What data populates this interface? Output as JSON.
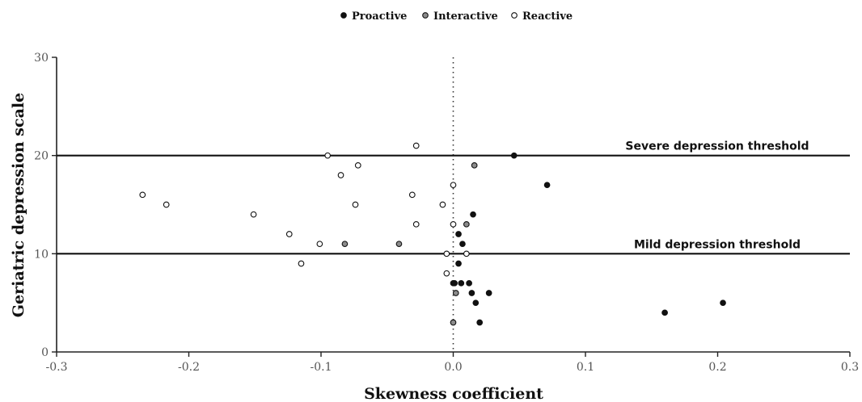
{
  "chart_data": {
    "type": "scatter",
    "xlabel": "Skewness coefficient",
    "ylabel": "Geriatric depression scale",
    "xlim": [
      -0.3,
      0.3
    ],
    "ylim": [
      0,
      30
    ],
    "xticks": [
      -0.3,
      -0.2,
      -0.1,
      0.0,
      0.1,
      0.2,
      0.3
    ],
    "xtick_labels": [
      "-0.3",
      "-0.2",
      "-0.1",
      "0.0",
      "0.1",
      "0.2",
      "0.3"
    ],
    "yticks": [
      0,
      10,
      20,
      30
    ],
    "ytick_labels": [
      "0",
      "10",
      "20",
      "30"
    ],
    "grid": false,
    "legend_position": "top-center",
    "vline": {
      "x": 0,
      "style": "dotted"
    },
    "hlines": [
      {
        "y": 20,
        "label": "Severe depression threshold"
      },
      {
        "y": 10,
        "label": "Mild depression threshold"
      }
    ],
    "series": [
      {
        "name": "Proactive",
        "color": "#111111",
        "points": [
          [
            0.046,
            20
          ],
          [
            0.071,
            17
          ],
          [
            0.015,
            14
          ],
          [
            0.004,
            12
          ],
          [
            0.007,
            11
          ],
          [
            0.004,
            9
          ],
          [
            0.0,
            7
          ],
          [
            0.001,
            7
          ],
          [
            0.006,
            7
          ],
          [
            0.012,
            7
          ],
          [
            0.014,
            6
          ],
          [
            0.027,
            6
          ],
          [
            0.017,
            5
          ],
          [
            0.02,
            3
          ],
          [
            0.16,
            4
          ],
          [
            0.204,
            5
          ]
        ]
      },
      {
        "name": "Interactive",
        "color": "#8c8c8c",
        "points": [
          [
            0.016,
            19
          ],
          [
            0.01,
            13
          ],
          [
            -0.082,
            11
          ],
          [
            -0.041,
            11
          ],
          [
            0.002,
            6
          ],
          [
            0.0,
            3
          ]
        ]
      },
      {
        "name": "Reactive",
        "color": "#ffffff",
        "points": [
          [
            -0.235,
            16
          ],
          [
            -0.217,
            15
          ],
          [
            -0.151,
            14
          ],
          [
            -0.124,
            12
          ],
          [
            -0.101,
            11
          ],
          [
            -0.115,
            9
          ],
          [
            -0.095,
            20
          ],
          [
            -0.085,
            18
          ],
          [
            -0.072,
            19
          ],
          [
            -0.074,
            15
          ],
          [
            -0.028,
            21
          ],
          [
            -0.031,
            16
          ],
          [
            -0.028,
            13
          ],
          [
            -0.008,
            15
          ],
          [
            -0.005,
            10
          ],
          [
            -0.005,
            8
          ],
          [
            0.0,
            17
          ],
          [
            0.0,
            13
          ],
          [
            0.01,
            10
          ]
        ]
      }
    ]
  }
}
